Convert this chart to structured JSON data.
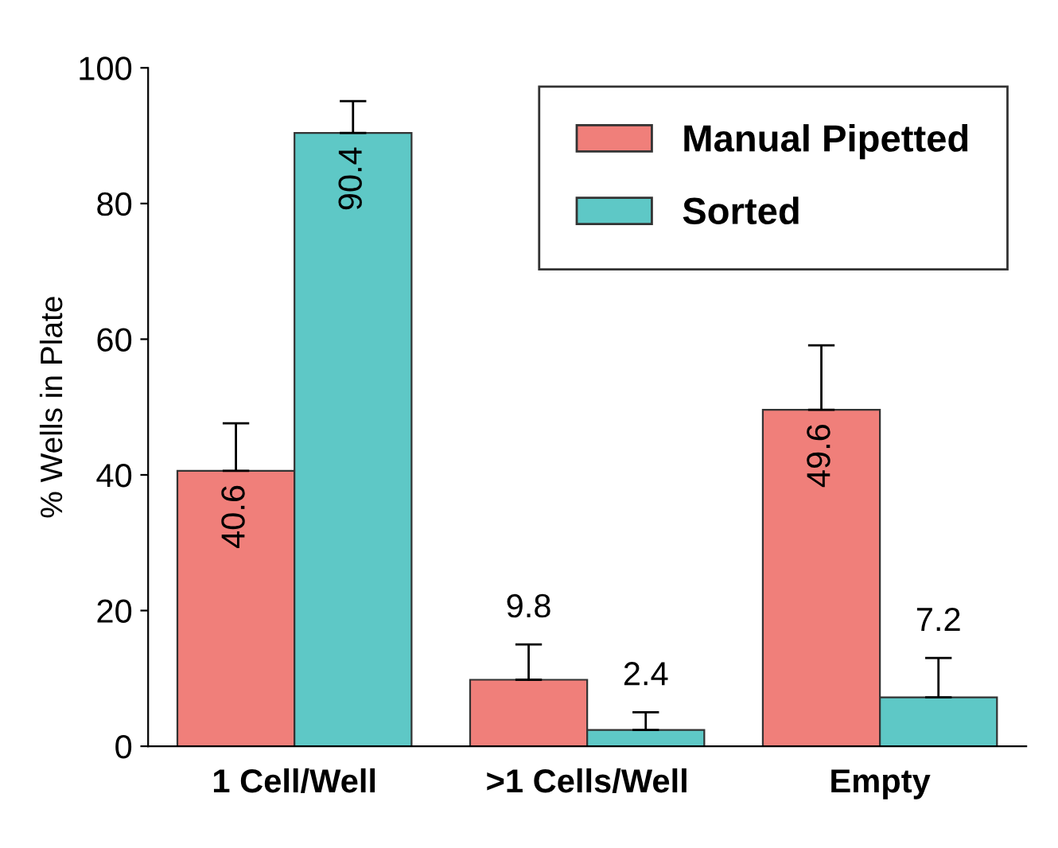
{
  "chart_data": {
    "type": "bar",
    "ylabel": "% Wells in Plate",
    "categories": [
      "1 Cell/Well",
      ">1 Cells/Well",
      "Empty"
    ],
    "series": [
      {
        "name": "Manual Pipetted",
        "color": "#f07f7a",
        "values": [
          40.6,
          9.8,
          49.6
        ],
        "errors": [
          [
            40.6,
            47.6
          ],
          [
            9.8,
            15.0
          ],
          [
            49.6,
            59.1
          ]
        ]
      },
      {
        "name": "Sorted",
        "color": "#5ec8c6",
        "values": [
          90.4,
          2.4,
          7.2
        ],
        "errors": [
          [
            90.4,
            95.1
          ],
          [
            2.4,
            5.0
          ],
          [
            7.2,
            13.0
          ]
        ]
      }
    ],
    "ylim": [
      0,
      100
    ],
    "yticks": [
      0,
      20,
      40,
      60,
      80,
      100
    ],
    "data_labels": true,
    "legend": "top right",
    "grid": false
  }
}
